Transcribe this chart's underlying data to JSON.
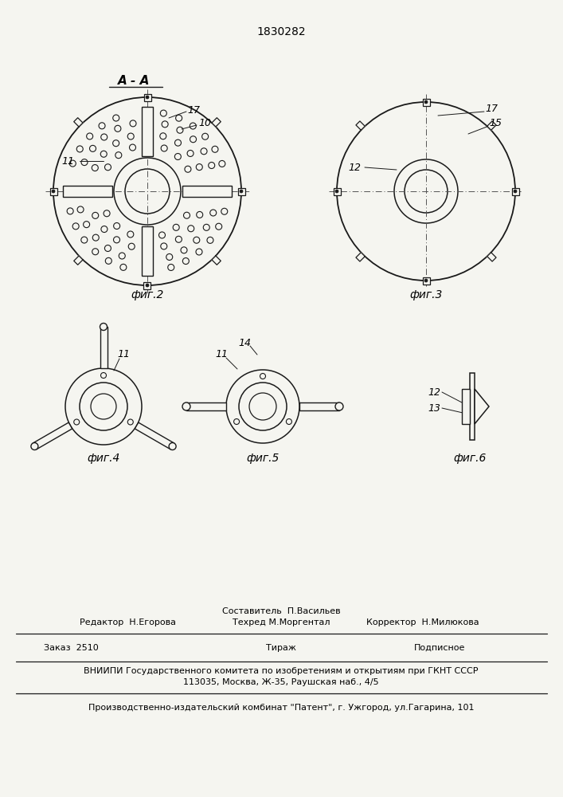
{
  "patent_number": "1830282",
  "background_color": "#f5f5f0",
  "line_color": "#1a1a1a",
  "fig2_label": "А - А",
  "fig2_caption": "фиг.2",
  "fig3_caption": "фиг.3",
  "fig4_caption": "фиг.4",
  "fig5_caption": "фиг.5",
  "fig6_caption": "фиг.6",
  "footer_line1_left": "Редактор  Н.Егорова",
  "footer_line1_center_top": "Составитель  П.Васильев",
  "footer_line1_center_bot": "Техред М.Моргентал",
  "footer_line1_right": "Корректор  Н.Милюкова",
  "footer_line2_left": "Заказ  2510",
  "footer_line2_center": "Тираж",
  "footer_line2_right": "Подписное",
  "footer_line3": "ВНИИПИ Государственного комитета по изобретениям и открытиям при ГКНТ СССР",
  "footer_line4": "113035, Москва, Ж-35, Раушская наб., 4/5",
  "footer_line5": "Производственно-издательский комбинат \"Патент\", г. Ужгород, ул.Гагарина, 101"
}
